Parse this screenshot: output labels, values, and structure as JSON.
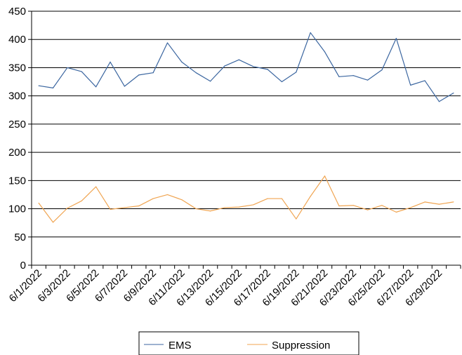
{
  "chart_data": {
    "type": "line",
    "title": "",
    "xlabel": "",
    "ylabel": "",
    "ylim": [
      0,
      450
    ],
    "yticks": [
      0,
      50,
      100,
      150,
      200,
      250,
      300,
      350,
      400,
      450
    ],
    "grid": true,
    "legend": "bottom",
    "x": [
      "6/1/2022",
      "6/2/2022",
      "6/3/2022",
      "6/4/2022",
      "6/5/2022",
      "6/6/2022",
      "6/7/2022",
      "6/8/2022",
      "6/9/2022",
      "6/10/2022",
      "6/11/2022",
      "6/12/2022",
      "6/13/2022",
      "6/14/2022",
      "6/15/2022",
      "6/16/2022",
      "6/17/2022",
      "6/18/2022",
      "6/19/2022",
      "6/20/2022",
      "6/21/2022",
      "6/22/2022",
      "6/23/2022",
      "6/24/2022",
      "6/25/2022",
      "6/26/2022",
      "6/27/2022",
      "6/28/2022",
      "6/29/2022",
      "6/30/2022"
    ],
    "xtick_labels": [
      "6/1/2022",
      "6/3/2022",
      "6/5/2022",
      "6/7/2022",
      "6/9/2022",
      "6/11/2022",
      "6/13/2022",
      "6/15/2022",
      "6/17/2022",
      "6/19/2022",
      "6/21/2022",
      "6/23/2022",
      "6/25/2022",
      "6/27/2022",
      "6/29/2022"
    ],
    "series": [
      {
        "name": "EMS",
        "color": "#3b66a0",
        "values": [
          318,
          314,
          350,
          343,
          316,
          360,
          317,
          337,
          341,
          394,
          360,
          341,
          326,
          353,
          364,
          352,
          347,
          325,
          342,
          412,
          378,
          334,
          336,
          328,
          346,
          402,
          319,
          327,
          290,
          305
        ]
      },
      {
        "name": "Suppression",
        "color": "#f0a552",
        "values": [
          110,
          76,
          101,
          114,
          139,
          99,
          102,
          105,
          118,
          125,
          116,
          100,
          96,
          102,
          103,
          107,
          118,
          118,
          82,
          122,
          158,
          105,
          106,
          98,
          106,
          94,
          102,
          112,
          108,
          112
        ]
      }
    ]
  }
}
